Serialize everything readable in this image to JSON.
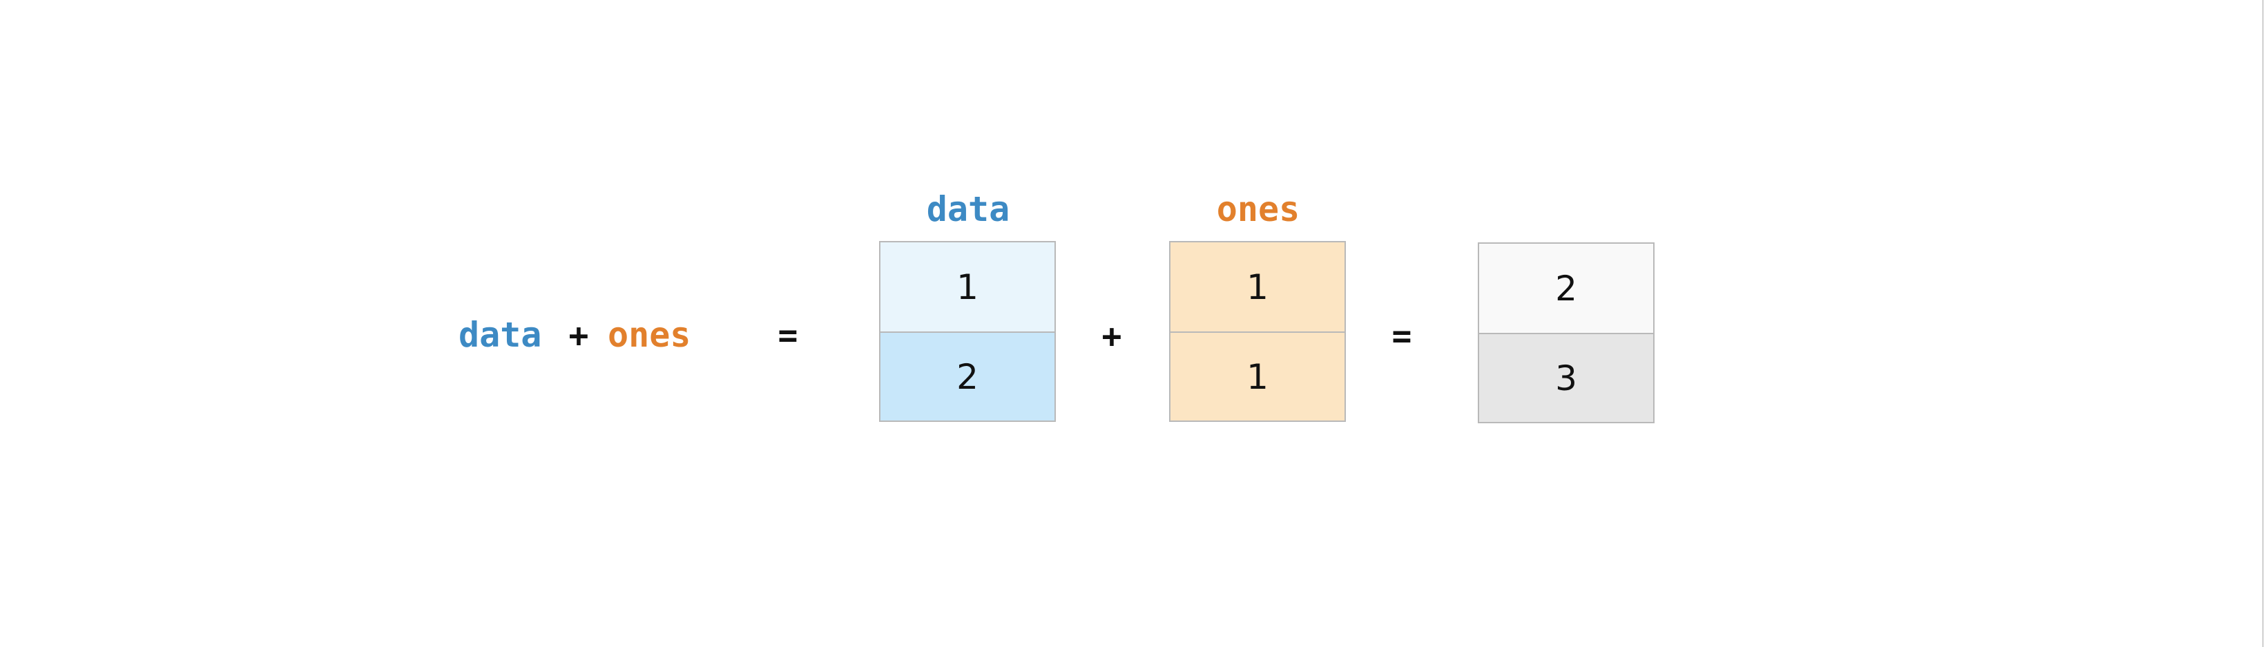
{
  "colors": {
    "data": "#3d8ac4",
    "ones": "#e2802c",
    "data_cells": [
      "#e9f5fc",
      "#c8e7fa"
    ],
    "ones_cells": [
      "#fce5c3",
      "#fce5c3"
    ],
    "result_cells": [
      "#f9f9f9",
      "#e6e6e6"
    ]
  },
  "expression": {
    "left": "data",
    "plus": "+",
    "right": "ones",
    "equals": "="
  },
  "arrays": {
    "data": {
      "label": "data",
      "values": [
        "1",
        "2"
      ]
    },
    "ones": {
      "label": "ones",
      "values": [
        "1",
        "1"
      ]
    },
    "result": {
      "values": [
        "2",
        "3"
      ]
    }
  },
  "operators": {
    "plus": "+",
    "equals": "="
  }
}
